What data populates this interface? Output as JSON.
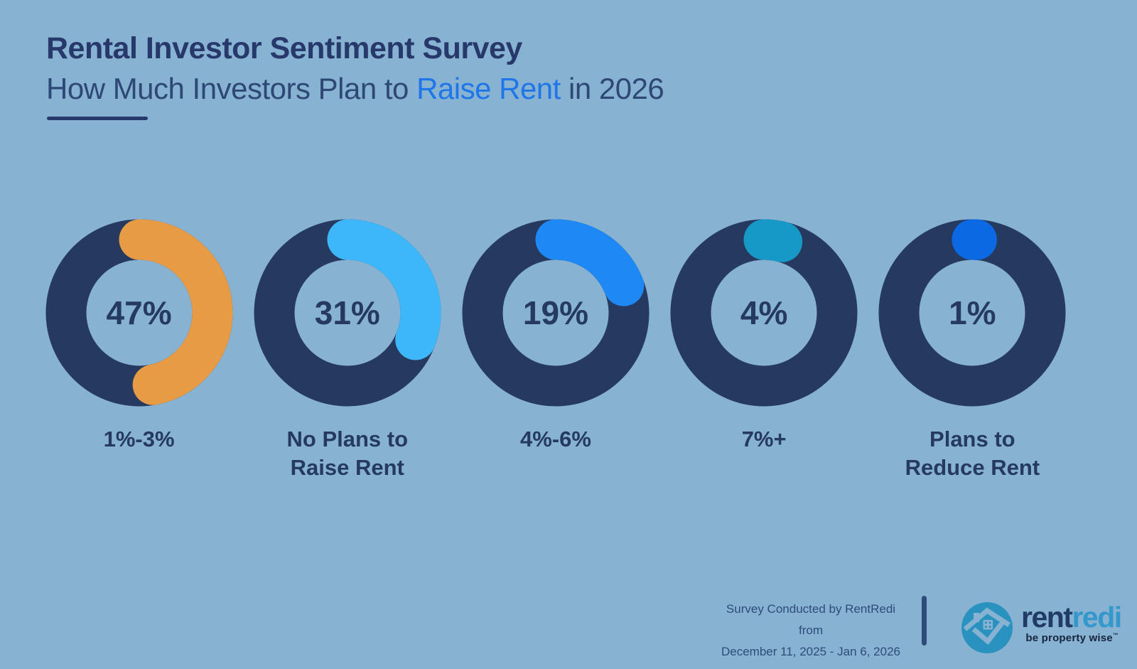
{
  "title": "Rental Investor Sentiment Survey",
  "subtitle": {
    "prefix": "How Much Investors Plan to ",
    "highlight": "Raise Rent",
    "suffix": " in 2026"
  },
  "colors": {
    "background": "#87B2D1",
    "ring_navy": "#263A60",
    "title_navy": "#27396B",
    "subtitle_navy": "#2E4875",
    "highlight_blue": "#1E76E8",
    "footer_navy": "#2E4C7A",
    "logo_teal": "#2A92BE",
    "wordmark_dark": "#1F3B66",
    "wordmark_light": "#3498CC",
    "tagline_dark": "#16243D"
  },
  "chart_data": {
    "type": "pie",
    "subtype": "donut-multiples",
    "title": "Rental Investor Sentiment Survey — How Much Investors Plan to Raise Rent in 2026",
    "unit": "percent of surveyed rental investors",
    "arc_start": "top",
    "direction": "clockwise",
    "categories": [
      "1%-3%",
      "No Plans to Raise Rent",
      "4%-6%",
      "7%+",
      "Plans to Reduce Rent"
    ],
    "values": [
      47,
      31,
      19,
      4,
      1
    ],
    "charts": [
      {
        "category": "1%-3%",
        "label_lines": [
          "1%-3%"
        ],
        "value": 47,
        "display": "47%",
        "color": "#E89B45"
      },
      {
        "category": "No Plans to Raise Rent",
        "label_lines": [
          "No Plans to",
          "Raise Rent"
        ],
        "value": 31,
        "display": "31%",
        "color": "#3DB7FA"
      },
      {
        "category": "4%-6%",
        "label_lines": [
          "4%-6%"
        ],
        "value": 19,
        "display": "19%",
        "color": "#1E88F5"
      },
      {
        "category": "7%+",
        "label_lines": [
          "7%+"
        ],
        "value": 4,
        "display": "4%",
        "color": "#1799C7"
      },
      {
        "category": "Plans to Reduce Rent",
        "label_lines": [
          "Plans to",
          "Reduce Rent"
        ],
        "value": 1,
        "display": "1%",
        "color": "#0B69E4"
      }
    ]
  },
  "footer": {
    "source_line1": "Survey Conducted by RentRedi from",
    "source_line2": "December 11, 2025 - Jan 6, 2026",
    "logo": {
      "wordmark_prefix": "rent",
      "wordmark_suffix": "redi",
      "tagline": "be property wise",
      "tagline_mark": "™"
    }
  }
}
